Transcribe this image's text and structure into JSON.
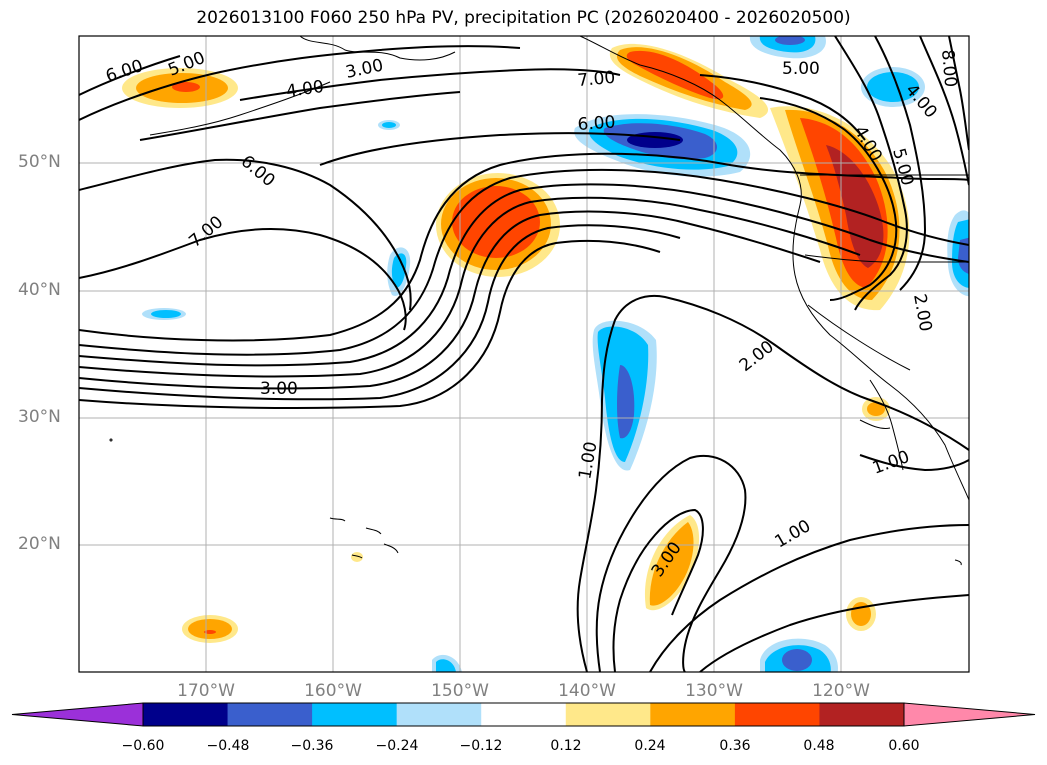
{
  "title": "2026013100 F060 250 hPa PV, precipitation PC (2026020400 - 2026020500)",
  "map": {
    "lat_labels": [
      "50°N",
      "40°N",
      "30°N",
      "20°N"
    ],
    "lon_labels": [
      "170°W",
      "160°W",
      "150°W",
      "140°W",
      "130°W",
      "120°W"
    ],
    "contour_labels": [
      "6.00",
      "5.00",
      "4.00",
      "3.00",
      "7.00",
      "6.00",
      "8.00",
      "5.00",
      "4.00",
      "6.00",
      "7.00",
      "4.00",
      "5.00",
      "3.00",
      "2.00",
      "2.00",
      "1.00",
      "1.00",
      "3.00",
      "1.00"
    ]
  },
  "colorbar": {
    "ticks": [
      "−0.60",
      "−0.48",
      "−0.36",
      "−0.24",
      "−0.12",
      "0.12",
      "0.24",
      "0.36",
      "0.48",
      "0.60"
    ],
    "colors": [
      "#9b30d9",
      "#00008b",
      "#3a5fcd",
      "#00bfff",
      "#b0e0fa",
      "#ffffff",
      "#ffe88a",
      "#ffa500",
      "#ff4500",
      "#b22222",
      "#ff88aa"
    ]
  }
}
